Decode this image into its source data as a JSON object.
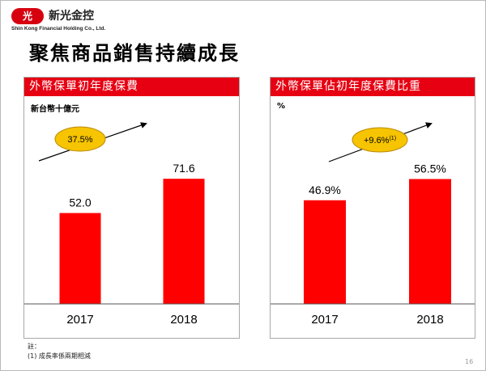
{
  "header": {
    "logo_mark": "光",
    "company_name": "新光金控",
    "company_subtitle": "Shin Kong Financial Holding Co., Ltd.",
    "page_title": "聚焦商品銷售持續成長"
  },
  "footer": {
    "note_label": "註：",
    "note_1": "(1) 成長率係兩期相減",
    "page_number": "16"
  },
  "colors": {
    "bar": "#ff0000",
    "header": "#e60012",
    "badge": "#f6c400",
    "badge_border": "#ba8a00"
  },
  "chart_data": [
    {
      "type": "bar",
      "title": "外幣保單初年度保費",
      "unit": "新台幣十億元",
      "categories": [
        "2017",
        "2018"
      ],
      "values": [
        52.0,
        71.6
      ],
      "value_labels": [
        "52.0",
        "71.6"
      ],
      "ylim": [
        0,
        80
      ],
      "legend": "none",
      "grid": false,
      "annotation": {
        "text": "37.5%",
        "note": ""
      }
    },
    {
      "type": "bar",
      "title": "外幣保單佔初年度保費比重",
      "unit": "%",
      "categories": [
        "2017",
        "2018"
      ],
      "values": [
        46.9,
        56.5
      ],
      "value_labels": [
        "46.9%",
        "56.5%"
      ],
      "ylim": [
        0,
        64
      ],
      "legend": "none",
      "grid": false,
      "annotation": {
        "text": "+9.6%",
        "note": "(1)"
      }
    }
  ]
}
